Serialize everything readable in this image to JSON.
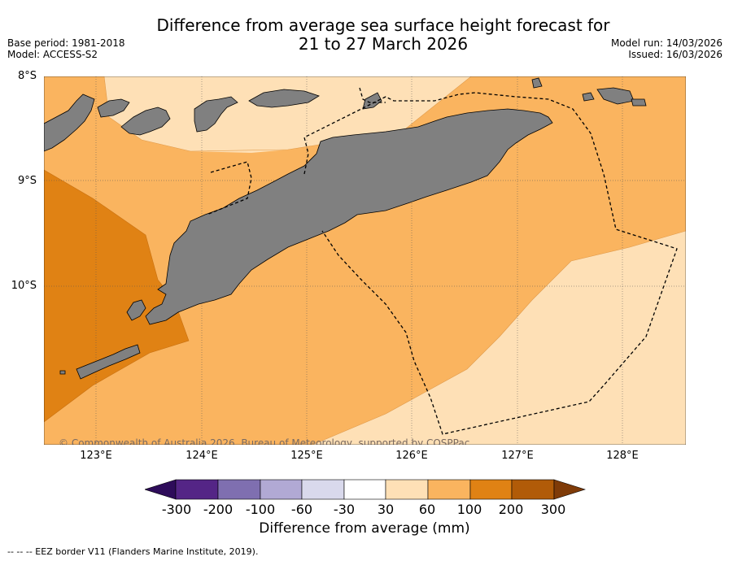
{
  "title": {
    "line1": "Difference from average sea surface height forecast for",
    "line2": "21 to 27 March 2026"
  },
  "meta": {
    "base_period": "Base period: 1981-2018",
    "model": "Model: ACCESS-S2",
    "model_run": "Model run: 14/03/2026",
    "issued": "Issued: 16/03/2026"
  },
  "axes": {
    "lat_labels": [
      "8°S",
      "9°S",
      "10°S"
    ],
    "lon_labels": [
      "123°E",
      "124°E",
      "125°E",
      "126°E",
      "127°E",
      "128°E"
    ]
  },
  "copyright": "© Commonwealth of Australia 2026, Bureau of Meteorology, supported by COSPPac",
  "colorbar": {
    "ticks": [
      "-300",
      "-200",
      "-100",
      "-60",
      "-30",
      "30",
      "60",
      "100",
      "200",
      "300"
    ],
    "colors": [
      "#2e0c5a",
      "#542586",
      "#7f6fb0",
      "#b1a9d4",
      "#d9d9ec",
      "#ffffff",
      "#fee0b6",
      "#fab45f",
      "#e08214",
      "#b15b08",
      "#7f3b08"
    ],
    "label": "Difference from average (mm)"
  },
  "legend_text": "--  --  -- EEZ border V11 (Flanders Marine Institute, 2019).",
  "map_colors": {
    "cat_30_60": "#fee0b6",
    "cat_60_100": "#fab45f",
    "cat_100_200": "#e08214",
    "land": "#808080"
  }
}
